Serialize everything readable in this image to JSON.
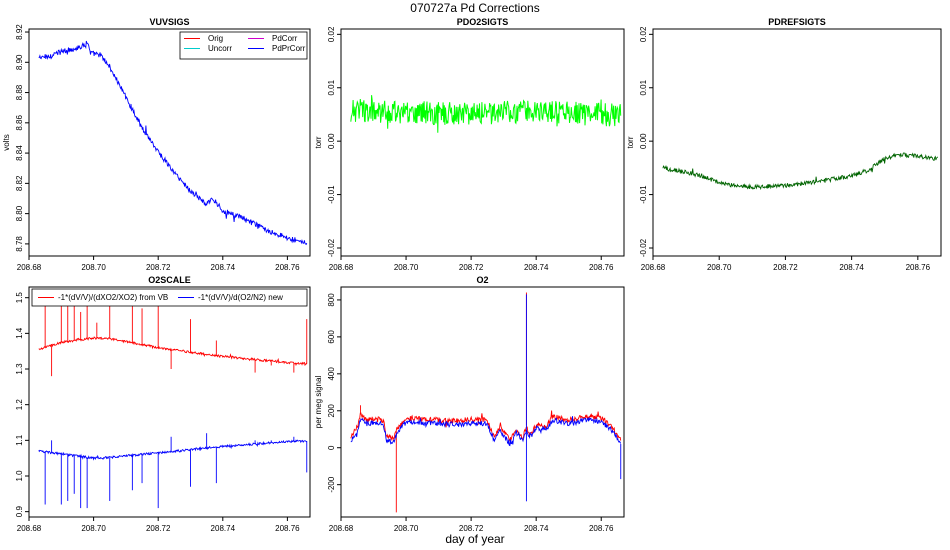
{
  "figure": {
    "title": "070727a   Pd Corrections",
    "xlabel": "day of year"
  },
  "chart_data": [
    {
      "type": "line",
      "title": "VUVSIGS",
      "ylabel": "volts",
      "xlim": [
        208.68,
        208.767
      ],
      "ylim": [
        8.772,
        8.922
      ],
      "xticks": [
        208.68,
        208.7,
        208.72,
        208.74,
        208.76
      ],
      "xtick_labels": [
        "208.68",
        "208.70",
        "208.72",
        "208.74",
        "208.76"
      ],
      "yticks": [
        8.78,
        8.8,
        8.82,
        8.84,
        8.86,
        8.88,
        8.9,
        8.92
      ],
      "ytick_labels": [
        "8.78",
        "8.80",
        "8.82",
        "8.84",
        "8.86",
        "8.88",
        "8.90",
        "8.92"
      ],
      "legend": {
        "position": "top-right",
        "entries": [
          {
            "name": "Orig",
            "color": "#ff0000"
          },
          {
            "name": "PdCorr",
            "color": "#cc00cc"
          },
          {
            "name": "Uncorr",
            "color": "#00cccc"
          },
          {
            "name": "PdPrCorr",
            "color": "#0000ff"
          }
        ]
      },
      "series": [
        {
          "name": "PdPrCorr",
          "color": "#0000ff",
          "noise": 0.0018,
          "x": [
            208.683,
            208.686,
            208.69,
            208.694,
            208.697,
            208.698,
            208.699,
            208.702,
            208.705,
            208.71,
            208.715,
            208.72,
            208.725,
            208.73,
            208.735,
            208.737,
            208.74,
            208.745,
            208.75,
            208.755,
            208.76,
            208.766
          ],
          "y": [
            8.903,
            8.904,
            8.907,
            8.909,
            8.911,
            8.914,
            8.906,
            8.905,
            8.897,
            8.877,
            8.857,
            8.841,
            8.827,
            8.815,
            8.806,
            8.81,
            8.802,
            8.798,
            8.793,
            8.788,
            8.784,
            8.781
          ]
        }
      ]
    },
    {
      "type": "line",
      "title": "PDO2SIGTS",
      "ylabel": "torr",
      "xlim": [
        208.68,
        208.767
      ],
      "ylim": [
        -0.0215,
        0.021
      ],
      "xticks": [
        208.68,
        208.7,
        208.72,
        208.74,
        208.76
      ],
      "xtick_labels": [
        "208.68",
        "208.70",
        "208.72",
        "208.74",
        "208.76"
      ],
      "yticks": [
        -0.02,
        -0.01,
        0.0,
        0.01,
        0.02
      ],
      "ytick_labels": [
        "-0.02",
        "-0.01",
        "0.00",
        "0.01",
        "0.02"
      ],
      "series": [
        {
          "name": "PDO2SIGTS",
          "color": "#00ff00",
          "noise": 0.0022,
          "x": [
            208.683,
            208.69,
            208.7,
            208.71,
            208.72,
            208.73,
            208.74,
            208.75,
            208.76,
            208.766
          ],
          "y": [
            0.0058,
            0.0056,
            0.0054,
            0.0052,
            0.0051,
            0.0053,
            0.0055,
            0.0052,
            0.005,
            0.0048
          ]
        }
      ]
    },
    {
      "type": "line",
      "title": "PDREFSIGTS",
      "ylabel": "torr",
      "xlim": [
        208.68,
        208.767
      ],
      "ylim": [
        -0.0215,
        0.021
      ],
      "xticks": [
        208.68,
        208.7,
        208.72,
        208.74,
        208.76
      ],
      "xtick_labels": [
        "208.68",
        "208.70",
        "208.72",
        "208.74",
        "208.76"
      ],
      "yticks": [
        -0.02,
        -0.01,
        0.0,
        0.01,
        0.02
      ],
      "ytick_labels": [
        "-0.02",
        "-0.01",
        "0.00",
        "0.01",
        "0.02"
      ],
      "series": [
        {
          "name": "PDREFSIGTS",
          "color": "#006400",
          "noise": 0.0004,
          "x": [
            208.683,
            208.69,
            208.695,
            208.7,
            208.705,
            208.71,
            208.72,
            208.73,
            208.74,
            208.745,
            208.75,
            208.755,
            208.76,
            208.766
          ],
          "y": [
            -0.005,
            -0.0058,
            -0.0065,
            -0.0078,
            -0.0084,
            -0.0086,
            -0.0083,
            -0.0076,
            -0.0065,
            -0.0055,
            -0.0032,
            -0.0025,
            -0.0028,
            -0.0033
          ]
        }
      ]
    },
    {
      "type": "line",
      "title": "O2SCALE",
      "xlim": [
        208.68,
        208.767
      ],
      "ylim": [
        0.885,
        1.53
      ],
      "xticks": [
        208.68,
        208.7,
        208.72,
        208.74,
        208.76
      ],
      "xtick_labels": [
        "208.68",
        "208.70",
        "208.72",
        "208.74",
        "208.76"
      ],
      "yticks": [
        0.9,
        1.0,
        1.1,
        1.2,
        1.3,
        1.4,
        1.5
      ],
      "ytick_labels": [
        "0.9",
        "1.0",
        "1.1",
        "1.2",
        "1.3",
        "1.4",
        "1.5"
      ],
      "legend": {
        "position": "top",
        "entries": [
          {
            "name": "-1*(dV/V)/(dXO2/XO2) from VB",
            "color": "#ff0000"
          },
          {
            "name": "-1*(dV/V)/d(O2/N2) new",
            "color": "#0000ff"
          }
        ]
      },
      "series": [
        {
          "name": "-1*(dV/V)/(dXO2/XO2) from VB",
          "color": "#ff0000",
          "noise": 0.003,
          "x": [
            208.683,
            208.69,
            208.7,
            208.705,
            208.72,
            208.74,
            208.76,
            208.766
          ],
          "y": [
            1.355,
            1.375,
            1.387,
            1.385,
            1.36,
            1.335,
            1.318,
            1.315
          ],
          "spikes": [
            [
              208.685,
              1.51
            ],
            [
              208.687,
              1.28
            ],
            [
              208.69,
              1.52
            ],
            [
              208.692,
              1.5
            ],
            [
              208.694,
              1.52
            ],
            [
              208.696,
              1.46
            ],
            [
              208.698,
              1.52
            ],
            [
              208.701,
              1.43
            ],
            [
              208.705,
              1.52
            ],
            [
              208.712,
              1.51
            ],
            [
              208.715,
              1.47
            ],
            [
              208.72,
              1.52
            ],
            [
              208.724,
              1.3
            ],
            [
              208.73,
              1.44
            ],
            [
              208.738,
              1.38
            ],
            [
              208.75,
              1.29
            ],
            [
              208.755,
              1.31
            ],
            [
              208.762,
              1.29
            ],
            [
              208.766,
              1.44
            ]
          ]
        },
        {
          "name": "-1*(dV/V)/d(O2/N2) new",
          "color": "#0000ff",
          "noise": 0.003,
          "x": [
            208.683,
            208.69,
            208.7,
            208.705,
            208.72,
            208.74,
            208.76,
            208.766
          ],
          "y": [
            1.07,
            1.062,
            1.05,
            1.052,
            1.065,
            1.083,
            1.097,
            1.098
          ],
          "spikes": [
            [
              208.685,
              0.92
            ],
            [
              208.687,
              1.1
            ],
            [
              208.69,
              0.92
            ],
            [
              208.692,
              0.93
            ],
            [
              208.694,
              0.95
            ],
            [
              208.696,
              0.91
            ],
            [
              208.698,
              0.91
            ],
            [
              208.705,
              0.93
            ],
            [
              208.712,
              0.96
            ],
            [
              208.715,
              0.98
            ],
            [
              208.72,
              0.91
            ],
            [
              208.724,
              1.11
            ],
            [
              208.73,
              0.97
            ],
            [
              208.735,
              1.12
            ],
            [
              208.738,
              0.98
            ],
            [
              208.75,
              1.1
            ],
            [
              208.755,
              1.1
            ],
            [
              208.762,
              1.11
            ],
            [
              208.766,
              1.01
            ]
          ]
        }
      ]
    },
    {
      "type": "line",
      "title": "O2",
      "ylabel": "per meg signal",
      "xlim": [
        208.68,
        208.767
      ],
      "ylim": [
        -375,
        870
      ],
      "xticks": [
        208.68,
        208.7,
        208.72,
        208.74,
        208.76
      ],
      "xtick_labels": [
        "208.68",
        "208.70",
        "208.72",
        "208.74",
        "208.76"
      ],
      "yticks": [
        -200,
        0,
        200,
        400,
        600,
        800
      ],
      "ytick_labels": [
        "-200",
        "0",
        "200",
        "400",
        "600",
        "800"
      ],
      "series": [
        {
          "name": "O2 red",
          "color": "#ff0000",
          "noise": 14,
          "x": [
            208.683,
            208.685,
            208.686,
            208.688,
            208.69,
            208.693,
            208.694,
            208.696,
            208.697,
            208.698,
            208.7,
            208.705,
            208.71,
            208.715,
            208.72,
            208.725,
            208.727,
            208.729,
            208.732,
            208.734,
            208.736,
            208.737,
            208.738,
            208.74,
            208.743,
            208.745,
            208.75,
            208.755,
            208.76,
            208.763,
            208.765,
            208.766
          ],
          "y": [
            60,
            110,
            180,
            150,
            155,
            150,
            60,
            50,
            90,
            120,
            160,
            155,
            150,
            145,
            155,
            150,
            60,
            110,
            40,
            100,
            60,
            120,
            70,
            130,
            110,
            170,
            150,
            170,
            160,
            120,
            70,
            40
          ],
          "spikes": [
            [
              208.697,
              -350
            ],
            [
              208.737,
              840
            ],
            [
              208.686,
              230
            ]
          ]
        },
        {
          "name": "O2 blue",
          "color": "#0000ff",
          "noise": 14,
          "x": [
            208.683,
            208.685,
            208.686,
            208.688,
            208.69,
            208.693,
            208.694,
            208.696,
            208.697,
            208.698,
            208.7,
            208.705,
            208.71,
            208.715,
            208.72,
            208.725,
            208.727,
            208.729,
            208.732,
            208.734,
            208.736,
            208.737,
            208.738,
            208.74,
            208.743,
            208.745,
            208.75,
            208.755,
            208.76,
            208.763,
            208.765,
            208.766
          ],
          "y": [
            40,
            90,
            160,
            130,
            135,
            130,
            40,
            30,
            70,
            100,
            140,
            135,
            130,
            125,
            135,
            130,
            40,
            90,
            20,
            80,
            40,
            100,
            50,
            110,
            90,
            150,
            130,
            150,
            140,
            100,
            50,
            20
          ],
          "spikes": [
            [
              208.737,
              830
            ],
            [
              208.737,
              -290
            ],
            [
              208.766,
              -170
            ]
          ]
        }
      ]
    }
  ]
}
